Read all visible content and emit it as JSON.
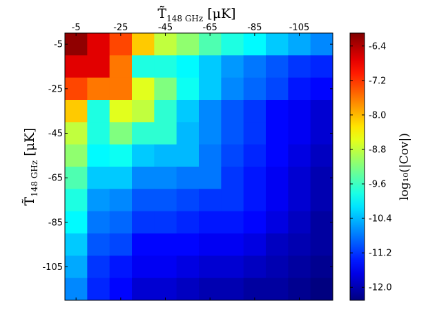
{
  "chart_data": {
    "type": "heatmap",
    "title": "",
    "xlabel": {
      "main": "T̃",
      "sub": "148 GHz",
      "unit": "[μK]"
    },
    "ylabel": {
      "main": "T̃",
      "sub": "148 GHz",
      "unit": "[μK]"
    },
    "x_tick_labels": [
      "-5",
      "-25",
      "-45",
      "-65",
      "-85",
      "-105"
    ],
    "y_tick_labels": [
      "-5",
      "-25",
      "-45",
      "-65",
      "-85",
      "-105"
    ],
    "bins": [
      "-5",
      "-15",
      "-25",
      "-35",
      "-45",
      "-55",
      "-65",
      "-75",
      "-85",
      "-95",
      "-105",
      "-115"
    ],
    "colorbar": {
      "label": "log₁₀(|Cov|)",
      "range": [
        -12.3,
        -6.1
      ],
      "tick_values": [
        -6.4,
        -7.2,
        -8.0,
        -8.8,
        -9.6,
        -10.4,
        -11.2,
        -12.0
      ],
      "tick_labels": [
        "-6.4",
        "-7.2",
        "-8.0",
        "-8.8",
        "-9.6",
        "-10.4",
        "-11.2",
        "-12.0"
      ],
      "colormap": "jet"
    },
    "values": [
      [
        -6.2,
        -6.7,
        -7.3,
        -8.1,
        -8.8,
        -9.1,
        -9.5,
        -9.8,
        -10.0,
        -10.3,
        -10.5,
        -10.7
      ],
      [
        -6.7,
        -6.7,
        -7.6,
        -9.8,
        -9.8,
        -10.0,
        -10.3,
        -10.6,
        -10.8,
        -11.0,
        -11.2,
        -11.3
      ],
      [
        -7.3,
        -7.6,
        -7.6,
        -8.6,
        -9.2,
        -9.9,
        -10.3,
        -10.7,
        -10.9,
        -11.1,
        -11.4,
        -11.5
      ],
      [
        -8.1,
        -9.8,
        -8.6,
        -8.8,
        -9.7,
        -10.3,
        -10.7,
        -11.0,
        -11.2,
        -11.5,
        -11.6,
        -11.8
      ],
      [
        -8.8,
        -9.8,
        -9.2,
        -9.7,
        -9.7,
        -10.4,
        -10.7,
        -11.0,
        -11.2,
        -11.5,
        -11.6,
        -11.8
      ],
      [
        -9.1,
        -10.0,
        -9.9,
        -10.3,
        -10.4,
        -10.4,
        -10.8,
        -11.1,
        -11.3,
        -11.5,
        -11.7,
        -11.9
      ],
      [
        -9.5,
        -10.3,
        -10.3,
        -10.7,
        -10.7,
        -10.8,
        -10.8,
        -11.2,
        -11.4,
        -11.6,
        -11.8,
        -12.0
      ],
      [
        -9.8,
        -10.6,
        -10.7,
        -11.0,
        -11.0,
        -11.1,
        -11.2,
        -11.2,
        -11.4,
        -11.6,
        -11.8,
        -12.0
      ],
      [
        -10.0,
        -10.8,
        -10.9,
        -11.2,
        -11.2,
        -11.3,
        -11.4,
        -11.4,
        -11.5,
        -11.7,
        -11.9,
        -12.1
      ],
      [
        -10.3,
        -11.0,
        -11.1,
        -11.5,
        -11.5,
        -11.5,
        -11.6,
        -11.6,
        -11.7,
        -11.9,
        -12.0,
        -12.1
      ],
      [
        -10.5,
        -11.2,
        -11.4,
        -11.6,
        -11.6,
        -11.7,
        -11.8,
        -11.8,
        -11.9,
        -12.0,
        -12.1,
        -12.2
      ],
      [
        -10.7,
        -11.3,
        -11.5,
        -11.8,
        -11.8,
        -11.9,
        -12.0,
        -12.0,
        -12.1,
        -12.1,
        -12.2,
        -12.3
      ]
    ]
  }
}
